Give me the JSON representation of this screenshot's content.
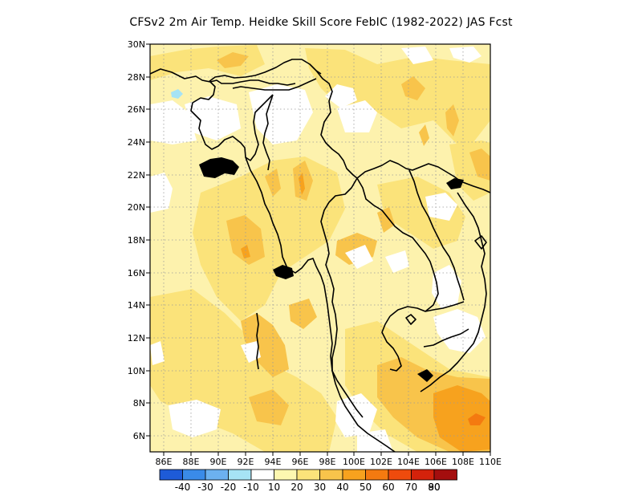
{
  "title": "CFSv2  2m Air Temp. Heidke Skill Score FebIC (1982-2022) JAS Fcst",
  "chart_data": {
    "type": "heatmap",
    "title": "CFSv2  2m Air Temp. Heidke Skill Score FebIC (1982-2022) JAS Fcst",
    "xlim": [
      85,
      110
    ],
    "ylim": [
      5,
      30
    ],
    "x_ticks": [
      "86E",
      "88E",
      "90E",
      "92E",
      "94E",
      "96E",
      "98E",
      "100E",
      "102E",
      "104E",
      "106E",
      "108E",
      "110E"
    ],
    "y_ticks": [
      "6N",
      "8N",
      "10N",
      "12N",
      "14N",
      "16N",
      "18N",
      "20N",
      "22N",
      "24N",
      "26N",
      "28N",
      "30N"
    ],
    "grid": true,
    "legend_position": "bottom",
    "colorbar": {
      "labels": [
        "-40",
        "-30",
        "-20",
        "-10",
        "10",
        "20",
        "30",
        "40",
        "50",
        "60",
        "70",
        "80",
        "90"
      ],
      "colors": [
        "#1e5bd8",
        "#3a8be8",
        "#6cb1ef",
        "#a6e3f5",
        "#ffffff",
        "#fdf7b0",
        "#fbe37a",
        "#f8c44b",
        "#f7a21e",
        "#f47a10",
        "#ef4b0d",
        "#d4220b",
        "#a40e0e"
      ]
    }
  }
}
